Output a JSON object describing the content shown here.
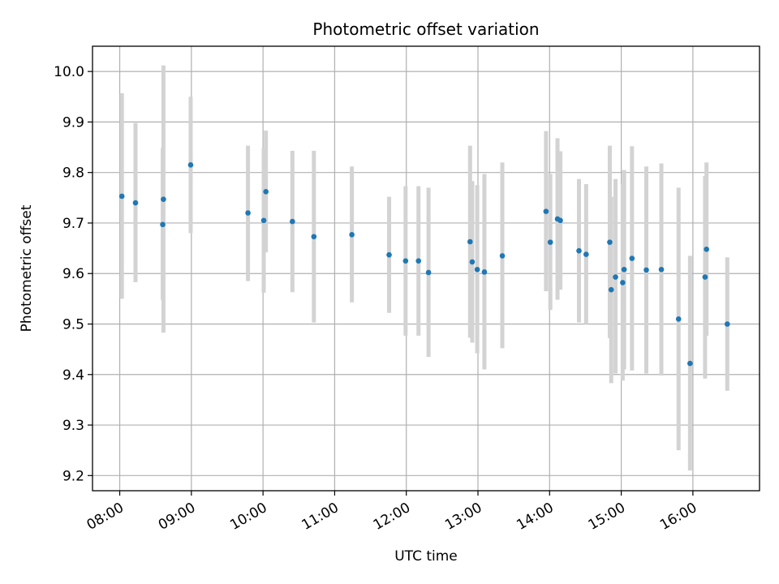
{
  "chart_data": {
    "type": "scatter",
    "title": "Photometric offset variation",
    "xlabel": "UTC time",
    "ylabel": "Photometric offset",
    "xlim_hours": [
      7.62,
      16.93
    ],
    "ylim": [
      9.17,
      10.05
    ],
    "grid": true,
    "x_ticks": [
      {
        "hour": 8,
        "label": "08:00"
      },
      {
        "hour": 9,
        "label": "09:00"
      },
      {
        "hour": 10,
        "label": "10:00"
      },
      {
        "hour": 11,
        "label": "11:00"
      },
      {
        "hour": 12,
        "label": "12:00"
      },
      {
        "hour": 13,
        "label": "13:00"
      },
      {
        "hour": 14,
        "label": "14:00"
      },
      {
        "hour": 15,
        "label": "15:00"
      },
      {
        "hour": 16,
        "label": "16:00"
      }
    ],
    "y_ticks": [
      {
        "value": 9.2,
        "label": "9.2"
      },
      {
        "value": 9.3,
        "label": "9.3"
      },
      {
        "value": 9.4,
        "label": "9.4"
      },
      {
        "value": 9.5,
        "label": "9.5"
      },
      {
        "value": 9.6,
        "label": "9.6"
      },
      {
        "value": 9.7,
        "label": "9.7"
      },
      {
        "value": 9.8,
        "label": "9.8"
      },
      {
        "value": 9.9,
        "label": "9.9"
      },
      {
        "value": 10.0,
        "label": "10.0"
      }
    ],
    "marker_color": "#1f77b4",
    "errorbar_color": "#d3d3d3",
    "points": [
      {
        "t": 8.03,
        "y": 9.753,
        "lo": 9.55,
        "hi": 9.957
      },
      {
        "t": 8.22,
        "y": 9.74,
        "lo": 9.583,
        "hi": 9.898
      },
      {
        "t": 8.6,
        "y": 9.697,
        "lo": 9.548,
        "hi": 9.848
      },
      {
        "t": 8.61,
        "y": 9.747,
        "lo": 9.483,
        "hi": 10.012
      },
      {
        "t": 8.99,
        "y": 9.815,
        "lo": 9.68,
        "hi": 9.95
      },
      {
        "t": 9.79,
        "y": 9.72,
        "lo": 9.585,
        "hi": 9.853
      },
      {
        "t": 10.01,
        "y": 9.705,
        "lo": 9.562,
        "hi": 9.848
      },
      {
        "t": 10.04,
        "y": 9.762,
        "lo": 9.642,
        "hi": 9.883
      },
      {
        "t": 10.41,
        "y": 9.703,
        "lo": 9.563,
        "hi": 9.843
      },
      {
        "t": 10.71,
        "y": 9.673,
        "lo": 9.503,
        "hi": 9.843
      },
      {
        "t": 11.24,
        "y": 9.677,
        "lo": 9.543,
        "hi": 9.812
      },
      {
        "t": 11.76,
        "y": 9.637,
        "lo": 9.522,
        "hi": 9.752
      },
      {
        "t": 11.99,
        "y": 9.625,
        "lo": 9.477,
        "hi": 9.773
      },
      {
        "t": 12.17,
        "y": 9.625,
        "lo": 9.477,
        "hi": 9.773
      },
      {
        "t": 12.31,
        "y": 9.602,
        "lo": 9.435,
        "hi": 9.77
      },
      {
        "t": 12.89,
        "y": 9.663,
        "lo": 9.473,
        "hi": 9.853
      },
      {
        "t": 12.92,
        "y": 9.623,
        "lo": 9.463,
        "hi": 9.783
      },
      {
        "t": 12.99,
        "y": 9.608,
        "lo": 9.442,
        "hi": 9.775
      },
      {
        "t": 13.09,
        "y": 9.603,
        "lo": 9.41,
        "hi": 9.797
      },
      {
        "t": 13.34,
        "y": 9.635,
        "lo": 9.452,
        "hi": 9.82
      },
      {
        "t": 13.95,
        "y": 9.723,
        "lo": 9.565,
        "hi": 9.882
      },
      {
        "t": 14.01,
        "y": 9.662,
        "lo": 9.528,
        "hi": 9.797
      },
      {
        "t": 14.11,
        "y": 9.708,
        "lo": 9.548,
        "hi": 9.868
      },
      {
        "t": 14.15,
        "y": 9.705,
        "lo": 9.568,
        "hi": 9.842
      },
      {
        "t": 14.41,
        "y": 9.645,
        "lo": 9.503,
        "hi": 9.787
      },
      {
        "t": 14.51,
        "y": 9.638,
        "lo": 9.5,
        "hi": 9.777
      },
      {
        "t": 14.84,
        "y": 9.662,
        "lo": 9.472,
        "hi": 9.853
      },
      {
        "t": 14.86,
        "y": 9.568,
        "lo": 9.383,
        "hi": 9.752
      },
      {
        "t": 14.92,
        "y": 9.593,
        "lo": 9.402,
        "hi": 9.787
      },
      {
        "t": 15.02,
        "y": 9.582,
        "lo": 9.388,
        "hi": 9.777
      },
      {
        "t": 15.04,
        "y": 9.608,
        "lo": 9.41,
        "hi": 9.805
      },
      {
        "t": 15.15,
        "y": 9.63,
        "lo": 9.408,
        "hi": 9.852
      },
      {
        "t": 15.35,
        "y": 9.607,
        "lo": 9.402,
        "hi": 9.812
      },
      {
        "t": 15.56,
        "y": 9.608,
        "lo": 9.398,
        "hi": 9.818
      },
      {
        "t": 15.8,
        "y": 9.51,
        "lo": 9.25,
        "hi": 9.77
      },
      {
        "t": 15.96,
        "y": 9.422,
        "lo": 9.21,
        "hi": 9.635
      },
      {
        "t": 16.17,
        "y": 9.593,
        "lo": 9.392,
        "hi": 9.793
      },
      {
        "t": 16.19,
        "y": 9.648,
        "lo": 9.477,
        "hi": 9.82
      },
      {
        "t": 16.48,
        "y": 9.5,
        "lo": 9.368,
        "hi": 9.632
      }
    ]
  }
}
